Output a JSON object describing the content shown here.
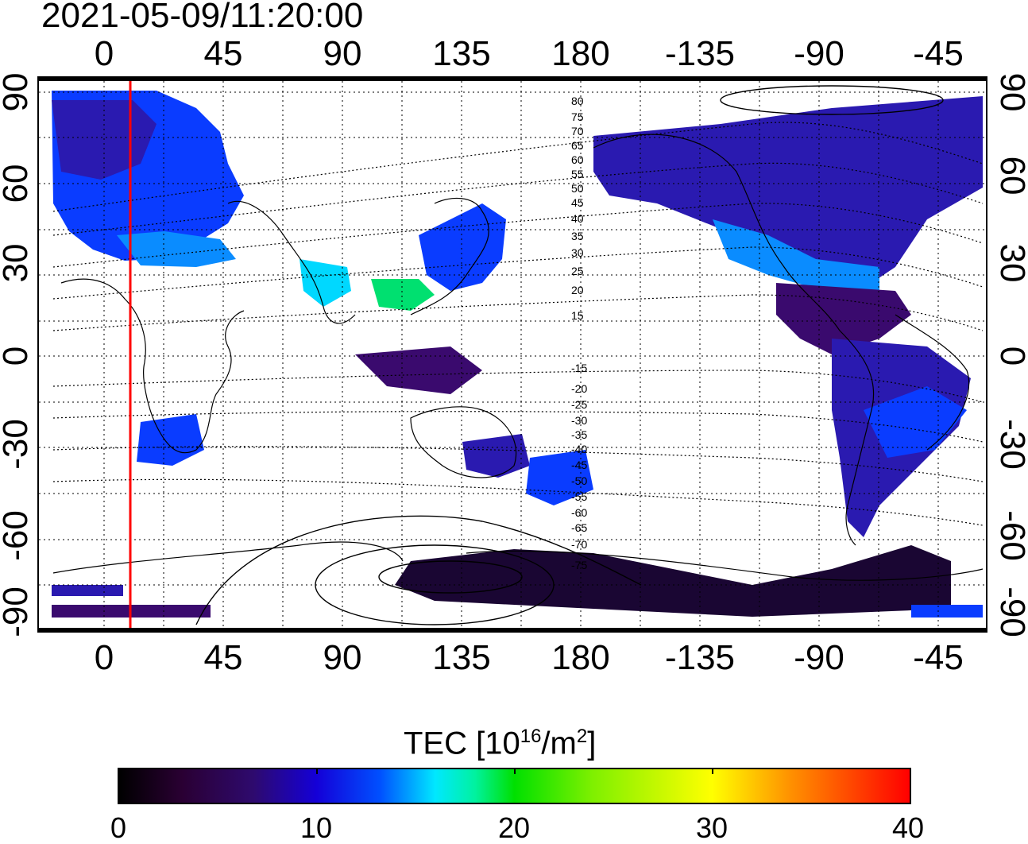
{
  "timestamp": "2021-05-09/11:20:00",
  "colorbar": {
    "title_prefix": "TEC  [10",
    "title_exp": "16",
    "title_suffix": "/m",
    "title_exp2": "2",
    "title_end": "]",
    "labels": [
      "0",
      "10",
      "20",
      "30",
      "40"
    ],
    "range": [
      0,
      40
    ]
  },
  "axes": {
    "lon_labels": [
      "0",
      "45",
      "90",
      "135",
      "180",
      "-135",
      "-90",
      "-45"
    ],
    "lat_labels": [
      "90",
      "60",
      "30",
      "0",
      "-30",
      "-60",
      "-90"
    ]
  },
  "contour_labels": [
    "80",
    "75",
    "70",
    "65",
    "60",
    "55",
    "50",
    "45",
    "40",
    "35",
    "30",
    "25",
    "20",
    "15",
    "-15",
    "-20",
    "-25",
    "-30",
    "-35",
    "-40",
    "-45",
    "-50",
    "-55",
    "-60",
    "-65",
    "-70",
    "-75"
  ],
  "marker": {
    "longitude": 10,
    "color": "#ff0000"
  },
  "colors": {
    "low": "#1a0633",
    "purple": "#3a0a6e",
    "indigo": "#2a1ab0",
    "blue": "#0a3cff",
    "lightblue": "#0a8cff",
    "cyan": "#00d8ff",
    "green": "#00e070"
  }
}
